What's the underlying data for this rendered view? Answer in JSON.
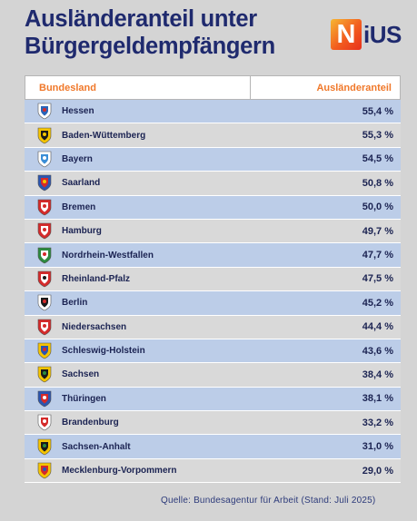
{
  "title": "Ausländeranteil unter Bürgergeldempfängern",
  "logo": {
    "mark": "N",
    "rest": "iUS"
  },
  "source": "Quelle: Bundesagentur für Arbeit (Stand: Juli 2025)",
  "colors": {
    "navy": "#1f2a6e",
    "orange": "#f0782a",
    "row_blue": "#bccde8",
    "row_grey": "#d9d9d9"
  },
  "chart_data": {
    "type": "table",
    "title": "Ausländeranteil unter Bürgergeldempfängern",
    "columns": [
      "Bundesland",
      "Ausländeranteil"
    ],
    "rows": [
      {
        "state": "Hessen",
        "value_label": "55,4 %",
        "value": 55.4,
        "crest": "hessen-crest-icon",
        "crest_colors": [
          "#ffffff",
          "#2a64b8",
          "#d42a2a"
        ]
      },
      {
        "state": "Baden-Wüttemberg",
        "value_label": "55,3 %",
        "value": 55.3,
        "crest": "baden-wuerttemberg-crest-icon",
        "crest_colors": [
          "#f5c400",
          "#1a1a1a",
          "#f5c400"
        ]
      },
      {
        "state": "Bayern",
        "value_label": "54,5 %",
        "value": 54.5,
        "crest": "bayern-crest-icon",
        "crest_colors": [
          "#ffffff",
          "#3b8ed6",
          "#ffffff"
        ]
      },
      {
        "state": "Saarland",
        "value_label": "50,8 %",
        "value": 50.8,
        "crest": "saarland-crest-icon",
        "crest_colors": [
          "#2b55b0",
          "#d42a2a",
          "#f5c400"
        ]
      },
      {
        "state": "Bremen",
        "value_label": "50,0 %",
        "value": 50.0,
        "crest": "bremen-crest-icon",
        "crest_colors": [
          "#d42a2a",
          "#ffffff",
          "#d42a2a"
        ]
      },
      {
        "state": "Hamburg",
        "value_label": "49,7 %",
        "value": 49.7,
        "crest": "hamburg-crest-icon",
        "crest_colors": [
          "#d42a2a",
          "#ffffff",
          "#d42a2a"
        ]
      },
      {
        "state": "Nordrhein-Westfallen",
        "value_label": "47,7 %",
        "value": 47.7,
        "crest": "nordrhein-westfalen-crest-icon",
        "crest_colors": [
          "#2c8a3e",
          "#ffffff",
          "#d42a2a"
        ]
      },
      {
        "state": "Rheinland-Pfalz",
        "value_label": "47,5 %",
        "value": 47.5,
        "crest": "rheinland-pfalz-crest-icon",
        "crest_colors": [
          "#d42a2a",
          "#ffffff",
          "#1a1a1a"
        ]
      },
      {
        "state": "Berlin",
        "value_label": "45,2 %",
        "value": 45.2,
        "crest": "berlin-crest-icon",
        "crest_colors": [
          "#ffffff",
          "#1a1a1a",
          "#d42a2a"
        ]
      },
      {
        "state": "Niedersachsen",
        "value_label": "44,4 %",
        "value": 44.4,
        "crest": "niedersachsen-crest-icon",
        "crest_colors": [
          "#d42a2a",
          "#ffffff",
          "#d42a2a"
        ]
      },
      {
        "state": "Schleswig-Holstein",
        "value_label": "43,6 %",
        "value": 43.6,
        "crest": "schleswig-holstein-crest-icon",
        "crest_colors": [
          "#f5c400",
          "#2b55b0",
          "#d42a2a"
        ]
      },
      {
        "state": "Sachsen",
        "value_label": "38,4 %",
        "value": 38.4,
        "crest": "sachsen-crest-icon",
        "crest_colors": [
          "#f5c400",
          "#1a1a1a",
          "#2c8a3e"
        ]
      },
      {
        "state": "Thüringen",
        "value_label": "38,1 %",
        "value": 38.1,
        "crest": "thueringen-crest-icon",
        "crest_colors": [
          "#2b55b0",
          "#d42a2a",
          "#ffffff"
        ]
      },
      {
        "state": "Brandenburg",
        "value_label": "33,2 %",
        "value": 33.2,
        "crest": "brandenburg-crest-icon",
        "crest_colors": [
          "#ffffff",
          "#d42a2a",
          "#ffffff"
        ]
      },
      {
        "state": "Sachsen-Anhalt",
        "value_label": "31,0 %",
        "value": 31.0,
        "crest": "sachsen-anhalt-crest-icon",
        "crest_colors": [
          "#f5c400",
          "#1a1a1a",
          "#2c8a3e"
        ]
      },
      {
        "state": "Mecklenburg-Vorpommern",
        "value_label": "29,0 %",
        "value": 29.0,
        "crest": "mecklenburg-vorpommern-crest-icon",
        "crest_colors": [
          "#f5c400",
          "#d42a2a",
          "#2b55b0"
        ]
      }
    ]
  }
}
